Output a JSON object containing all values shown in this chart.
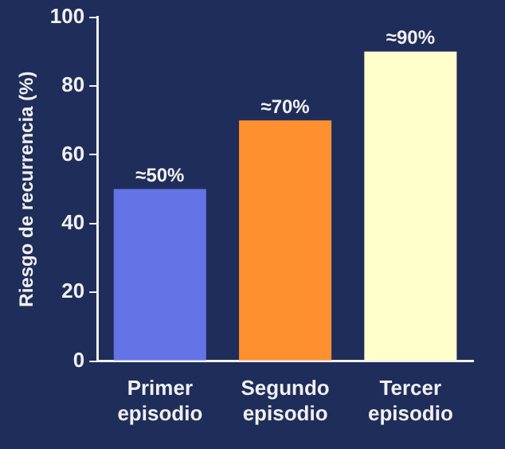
{
  "chart_data": {
    "type": "bar",
    "ylabel": "Riesgo de recurrencia (%)",
    "categories": [
      "Primer episodio",
      "Segundo episodio",
      "Tercer episodio"
    ],
    "values": [
      50,
      70,
      90
    ],
    "colors": [
      "#6474e6",
      "#ff9030",
      "#ffffcc"
    ],
    "value_labels": [
      "≈50%",
      "≈70%",
      "≈90%"
    ],
    "ylim": [
      0,
      100
    ],
    "yticks": [
      0,
      20,
      40,
      60,
      80,
      100
    ],
    "grid": false,
    "legend": false
  }
}
